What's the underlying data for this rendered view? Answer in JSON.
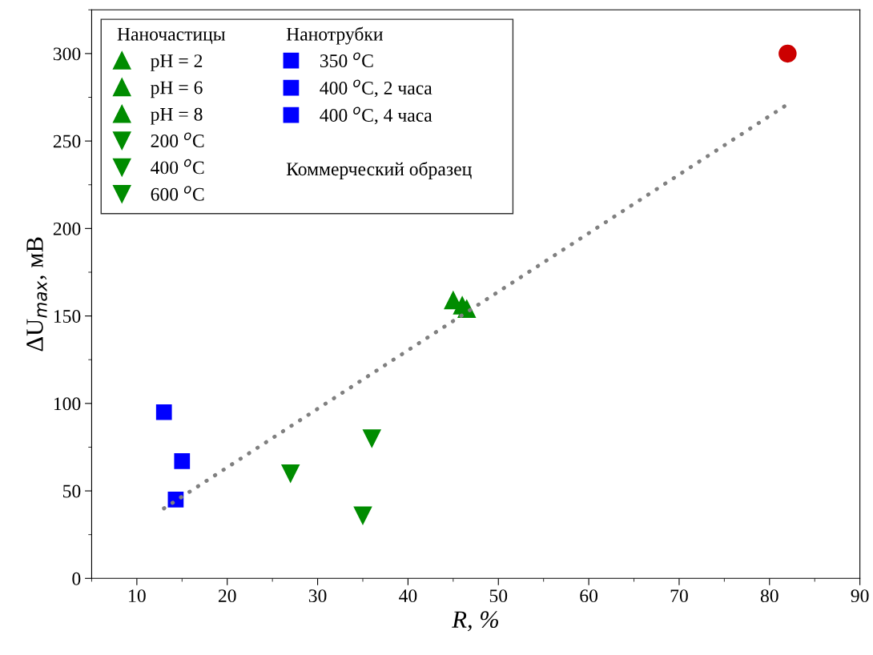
{
  "chart_data": {
    "type": "scatter",
    "xlabel": "R, %",
    "ylabel": "ΔU$_{max}$, мВ",
    "xlim": [
      5,
      90
    ],
    "xticks": [
      10,
      20,
      30,
      40,
      50,
      60,
      70,
      80,
      90
    ],
    "ylim": [
      0,
      325
    ],
    "yticks": [
      0,
      50,
      100,
      150,
      200,
      250,
      300
    ],
    "grid": false,
    "legend": "top left",
    "annotations": [
      "Наночастицы",
      "Нанотрубки",
      "Коммерческий образец"
    ],
    "series": [
      {
        "name": "pH = 2",
        "color": "#008c00",
        "marker": "triangle",
        "x": [
          45
        ],
        "values": [
          159
        ]
      },
      {
        "name": "pH = 6",
        "color": "#008c00",
        "marker": "triangle",
        "x": [
          46
        ],
        "values": [
          156
        ]
      },
      {
        "name": "pH = 8",
        "color": "#008c00",
        "marker": "triangle",
        "x": [
          46.5
        ],
        "values": [
          154
        ]
      },
      {
        "name": "200 $^{o}$C",
        "color": "#008c00",
        "marker": "triangle_down",
        "x": [
          27
        ],
        "values": [
          60
        ]
      },
      {
        "name": "400 $^{o}$C",
        "color": "#008c00",
        "marker": "triangle_down",
        "x": [
          35
        ],
        "values": [
          36
        ]
      },
      {
        "name": "600 $^{o}$C",
        "color": "#008c00",
        "marker": "triangle_down",
        "x": [
          36
        ],
        "values": [
          80
        ]
      },
      {
        "name": "350 $^{o}$C",
        "color": "#0000ff",
        "marker": "square",
        "x": [
          13
        ],
        "values": [
          95
        ]
      },
      {
        "name": "400 $^{o}$C, 2 часа",
        "color": "#0000ff",
        "marker": "square",
        "x": [
          14.3
        ],
        "values": [
          45
        ]
      },
      {
        "name": "400 $^{o}$C, 4 часа",
        "color": "#0000ff",
        "marker": "square",
        "x": [
          15
        ],
        "values": [
          67
        ]
      },
      {
        "color": "#cc0000",
        "marker": "circle",
        "x": [
          82
        ],
        "values": [
          300
        ]
      },
      {
        "type": "line",
        "color": "#808080",
        "line_style": "dotted",
        "marker": "none",
        "x": [
          13,
          82
        ],
        "values": [
          40,
          271
        ]
      }
    ]
  }
}
